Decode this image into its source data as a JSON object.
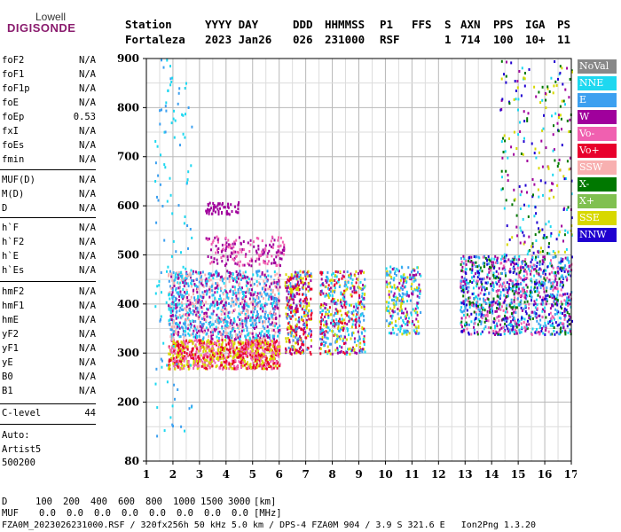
{
  "logo": {
    "top": "Lowell",
    "main": "DIGISONDE"
  },
  "header": {
    "labels": [
      "Station",
      "YYYY DAY",
      "DDD",
      "HHMMSS",
      "P1",
      "FFS",
      "S",
      "AXN",
      "PPS",
      "IGA",
      "PS"
    ],
    "station": "Fortaleza",
    "year_day": "2023 Jan26",
    "ddd": "026",
    "hhmmss": "231000",
    "p1": "RSF",
    "ffs": "",
    "s": "1",
    "axn": "714",
    "pps": "100",
    "iga": "10+",
    "ps": "11"
  },
  "params": [
    {
      "group": 1,
      "name": "foF2",
      "value": "N/A"
    },
    {
      "group": 1,
      "name": "foF1",
      "value": "N/A"
    },
    {
      "group": 1,
      "name": "foF1p",
      "value": "N/A"
    },
    {
      "group": 1,
      "name": "foE",
      "value": "N/A"
    },
    {
      "group": 1,
      "name": "foEp",
      "value": "0.53"
    },
    {
      "group": 1,
      "name": "fxI",
      "value": "N/A"
    },
    {
      "group": 1,
      "name": "foEs",
      "value": "N/A"
    },
    {
      "group": 1,
      "name": "fmin",
      "value": "N/A"
    },
    {
      "group": 2,
      "name": "MUF(D)",
      "value": "N/A"
    },
    {
      "group": 2,
      "name": "M(D)",
      "value": "N/A"
    },
    {
      "group": 2,
      "name": "D",
      "value": "N/A"
    },
    {
      "group": 3,
      "name": "h`F",
      "value": "N/A"
    },
    {
      "group": 3,
      "name": "h`F2",
      "value": "N/A"
    },
    {
      "group": 3,
      "name": "h`E",
      "value": "N/A"
    },
    {
      "group": 3,
      "name": "h`Es",
      "value": "N/A"
    },
    {
      "group": 4,
      "name": "hmF2",
      "value": "N/A"
    },
    {
      "group": 4,
      "name": "hmF1",
      "value": "N/A"
    },
    {
      "group": 4,
      "name": "hmE",
      "value": "N/A"
    },
    {
      "group": 4,
      "name": "yF2",
      "value": "N/A"
    },
    {
      "group": 4,
      "name": "yF1",
      "value": "N/A"
    },
    {
      "group": 4,
      "name": "yE",
      "value": "N/A"
    },
    {
      "group": 4,
      "name": "B0",
      "value": "N/A"
    },
    {
      "group": 4,
      "name": "B1",
      "value": "N/A"
    }
  ],
  "c_level": {
    "label": "C-level",
    "value": "44"
  },
  "auto": {
    "line1": "Auto:",
    "line2": "Artist5",
    "line3": "500200"
  },
  "legend": [
    {
      "label": "NoVal",
      "color": "#888888"
    },
    {
      "label": "NNE",
      "color": "#1ed8f0"
    },
    {
      "label": "E",
      "color": "#3ca0f0"
    },
    {
      "label": "W",
      "color": "#a0009c"
    },
    {
      "label": "Vo-",
      "color": "#f060b0"
    },
    {
      "label": "Vo+",
      "color": "#e8002c"
    },
    {
      "label": "SSW",
      "color": "#f8b0b0"
    },
    {
      "label": "X-",
      "color": "#007800"
    },
    {
      "label": "X+",
      "color": "#80c050"
    },
    {
      "label": "SSE",
      "color": "#d8d800"
    },
    {
      "label": "NNW",
      "color": "#2000d0"
    }
  ],
  "chart_data": {
    "type": "scatter",
    "title": "",
    "xlabel": "",
    "ylabel": "",
    "xlim": [
      1,
      17
    ],
    "ylim": [
      80,
      900
    ],
    "xticks": [
      1,
      2,
      3,
      4,
      5,
      6,
      7,
      8,
      9,
      10,
      11,
      12,
      13,
      14,
      15,
      16,
      17
    ],
    "yticks": [
      80,
      200,
      300,
      400,
      500,
      600,
      700,
      800,
      900
    ],
    "grid": true,
    "legend_position": "right",
    "clusters": [
      {
        "x": [
          1.8,
          6.0
        ],
        "y": [
          270,
          330
        ],
        "colors": [
          "#d8d800",
          "#e8002c",
          "#f060b0"
        ],
        "density": 900
      },
      {
        "x": [
          1.8,
          6.0
        ],
        "y": [
          330,
          470
        ],
        "colors": [
          "#3ca0f0",
          "#1ed8f0",
          "#f8b0b0",
          "#a0009c"
        ],
        "density": 1100
      },
      {
        "x": [
          3.2,
          6.2
        ],
        "y": [
          480,
          540
        ],
        "colors": [
          "#a0009c",
          "#f060b0"
        ],
        "density": 180
      },
      {
        "x": [
          3.2,
          4.5
        ],
        "y": [
          585,
          610
        ],
        "colors": [
          "#a0009c"
        ],
        "density": 60
      },
      {
        "x": [
          6.2,
          7.2
        ],
        "y": [
          300,
          470
        ],
        "colors": [
          "#3ca0f0",
          "#e8002c",
          "#d8d800",
          "#a0009c"
        ],
        "density": 350
      },
      {
        "x": [
          7.5,
          9.2
        ],
        "y": [
          300,
          470
        ],
        "colors": [
          "#3ca0f0",
          "#e8002c",
          "#d8d800",
          "#a0009c",
          "#1ed8f0"
        ],
        "density": 450
      },
      {
        "x": [
          10.0,
          11.3
        ],
        "y": [
          340,
          480
        ],
        "colors": [
          "#d8d800",
          "#a0009c",
          "#3ca0f0",
          "#1ed8f0"
        ],
        "density": 250
      },
      {
        "x": [
          12.8,
          17.0
        ],
        "y": [
          340,
          500
        ],
        "colors": [
          "#a0009c",
          "#3ca0f0",
          "#1ed8f0",
          "#007800",
          "#2000d0",
          "#f060b0"
        ],
        "density": 1100
      },
      {
        "x": [
          14.3,
          17.0
        ],
        "y": [
          500,
          900
        ],
        "colors": [
          "#007800",
          "#1ed8f0",
          "#a0009c",
          "#2000d0",
          "#d8d800"
        ],
        "density": 260
      },
      {
        "x": [
          1.3,
          2.7
        ],
        "y": [
          120,
          900
        ],
        "colors": [
          "#1ed8f0",
          "#3ca0f0"
        ],
        "density": 120
      }
    ]
  },
  "footer": {
    "d_label": "D",
    "d_values": [
      "100",
      "200",
      "400",
      "600",
      "800",
      "1000",
      "1500",
      "3000"
    ],
    "d_unit": "[km]",
    "muf_label": "MUF",
    "muf_values": [
      "0.0",
      "0.0",
      "0.0",
      "0.0",
      "0.0",
      "0.0",
      "0.0",
      "0.0"
    ],
    "muf_unit": "[MHz]",
    "status": "FZA0M_2023026231000.RSF / 320fx256h 50 kHz 5.0 km / DPS-4 FZA0M 904 / 3.9 S 321.6 E   Ion2Png 1.3.20"
  }
}
